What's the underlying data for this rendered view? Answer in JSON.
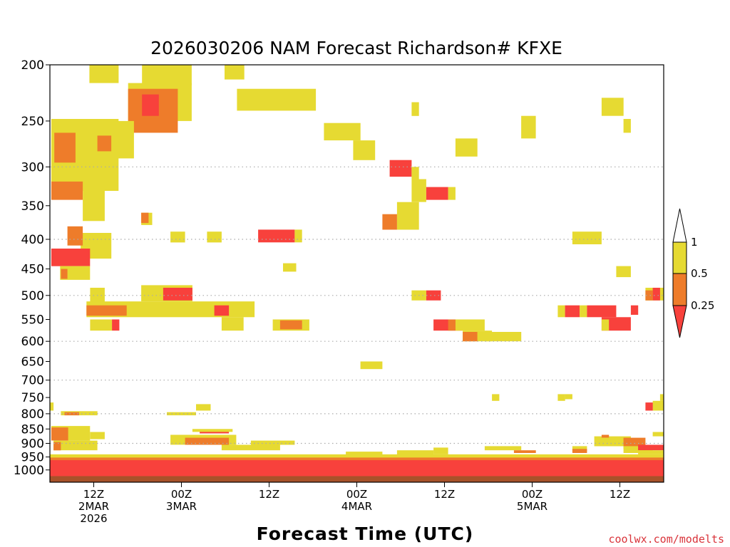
{
  "colors": {
    "ri_lt_025": "#f8413c",
    "ri_025_05": "#ee7c2a",
    "ri_05_1": "#e6da32",
    "surface": "#a8522a",
    "credit": "#d9333a",
    "grid": "#aaaaaa"
  },
  "chart_data": {
    "type": "heatmap",
    "title": "2026030206 NAM Forecast Richardson# KFXE",
    "xlabel": "Forecast Time (UTC)",
    "credit": "coolwx.com/modelts",
    "xlim_hours": [
      0,
      84
    ],
    "ylim_hpa": [
      200,
      1050
    ],
    "y_scale": "log-pressure",
    "yticks": [
      200,
      250,
      300,
      350,
      400,
      450,
      500,
      550,
      600,
      650,
      700,
      750,
      800,
      850,
      900,
      950,
      1000
    ],
    "y_gridlines": [
      300,
      400,
      500,
      600,
      700,
      800,
      900
    ],
    "xticks": [
      {
        "hour": 6,
        "lines": [
          "12Z",
          "2MAR",
          "2026"
        ]
      },
      {
        "hour": 18,
        "lines": [
          "00Z",
          "3MAR"
        ]
      },
      {
        "hour": 30,
        "lines": [
          "12Z"
        ]
      },
      {
        "hour": 42,
        "lines": [
          "00Z",
          "4MAR"
        ]
      },
      {
        "hour": 54,
        "lines": [
          "12Z"
        ]
      },
      {
        "hour": 66,
        "lines": [
          "00Z",
          "5MAR"
        ]
      },
      {
        "hour": 78,
        "lines": [
          "12Z"
        ]
      }
    ],
    "colorbar": {
      "ticks": [
        "1",
        "0.5",
        "0.25"
      ],
      "bins": [
        {
          "range": "> 1",
          "color": "none"
        },
        {
          "range": "0.5 - 1",
          "color": "ri_05_1"
        },
        {
          "range": "0.25 - 0.5",
          "color": "ri_025_05"
        },
        {
          "range": "< 0.25",
          "color": "ri_lt_025"
        }
      ]
    },
    "surface_layer_hpa": 1025,
    "regions": [
      {
        "c": "ri_05_1",
        "h0": 5.4,
        "h1": 9.4,
        "p0": 200,
        "p1": 215
      },
      {
        "c": "ri_05_1",
        "h0": 12.6,
        "h1": 19.4,
        "p0": 200,
        "p1": 217
      },
      {
        "c": "ri_05_1",
        "h0": 23.9,
        "h1": 26.6,
        "p0": 200,
        "p1": 212
      },
      {
        "c": "ri_05_1",
        "h0": 25.6,
        "h1": 36.4,
        "p0": 220,
        "p1": 240
      },
      {
        "c": "ri_05_1",
        "h0": 10.7,
        "h1": 19.4,
        "p0": 215,
        "p1": 250
      },
      {
        "c": "ri_025_05",
        "h0": 10.7,
        "h1": 17.5,
        "p0": 220,
        "p1": 262
      },
      {
        "c": "ri_lt_025",
        "h0": 12.6,
        "h1": 14.9,
        "p0": 225,
        "p1": 245
      },
      {
        "c": "ri_05_1",
        "h0": 7.5,
        "h1": 11.5,
        "p0": 250,
        "p1": 290
      },
      {
        "c": "ri_05_1",
        "h0": 0.2,
        "h1": 9.4,
        "p0": 248,
        "p1": 330
      },
      {
        "c": "ri_025_05",
        "h0": 0.6,
        "h1": 3.5,
        "p0": 262,
        "p1": 295
      },
      {
        "c": "ri_025_05",
        "h0": 6.5,
        "h1": 8.4,
        "p0": 265,
        "p1": 282
      },
      {
        "c": "ri_025_05",
        "h0": 0.2,
        "h1": 4.5,
        "p0": 318,
        "p1": 342
      },
      {
        "c": "ri_05_1",
        "h0": 4.5,
        "h1": 7.5,
        "p0": 330,
        "p1": 372
      },
      {
        "c": "ri_05_1",
        "h0": 4.2,
        "h1": 8.4,
        "p0": 390,
        "p1": 432
      },
      {
        "c": "ri_025_05",
        "h0": 2.4,
        "h1": 4.5,
        "p0": 380,
        "p1": 410
      },
      {
        "c": "ri_lt_025",
        "h0": 0.2,
        "h1": 5.5,
        "p0": 415,
        "p1": 445
      },
      {
        "c": "ri_05_1",
        "h0": 1.4,
        "h1": 5.5,
        "p0": 445,
        "p1": 470
      },
      {
        "c": "ri_025_05",
        "h0": 1.5,
        "h1": 2.4,
        "p0": 450,
        "p1": 468
      },
      {
        "c": "ri_05_1",
        "h0": 12.5,
        "h1": 14.0,
        "p0": 360,
        "p1": 378
      },
      {
        "c": "ri_025_05",
        "h0": 12.5,
        "h1": 13.5,
        "p0": 360,
        "p1": 375
      },
      {
        "c": "ri_05_1",
        "h0": 16.5,
        "h1": 18.5,
        "p0": 388,
        "p1": 405
      },
      {
        "c": "ri_05_1",
        "h0": 21.5,
        "h1": 23.5,
        "p0": 388,
        "p1": 405
      },
      {
        "c": "ri_lt_025",
        "h0": 28.5,
        "h1": 33.5,
        "p0": 385,
        "p1": 405
      },
      {
        "c": "ri_05_1",
        "h0": 33.5,
        "h1": 34.5,
        "p0": 385,
        "p1": 405
      },
      {
        "c": "ri_05_1",
        "h0": 31.9,
        "h1": 33.7,
        "p0": 440,
        "p1": 455
      },
      {
        "c": "ri_05_1",
        "h0": 37.5,
        "h1": 42.5,
        "p0": 252,
        "p1": 270
      },
      {
        "c": "ri_05_1",
        "h0": 41.5,
        "h1": 44.5,
        "p0": 270,
        "p1": 292
      },
      {
        "c": "ri_lt_025",
        "h0": 46.5,
        "h1": 49.5,
        "p0": 292,
        "p1": 312
      },
      {
        "c": "ri_05_1",
        "h0": 49.5,
        "h1": 50.5,
        "p0": 300,
        "p1": 315
      },
      {
        "c": "ri_05_1",
        "h0": 49.5,
        "h1": 51.5,
        "p0": 315,
        "p1": 345
      },
      {
        "c": "ri_lt_025",
        "h0": 51.5,
        "h1": 54.5,
        "p0": 325,
        "p1": 342
      },
      {
        "c": "ri_05_1",
        "h0": 54.5,
        "h1": 55.5,
        "p0": 325,
        "p1": 342
      },
      {
        "c": "ri_05_1",
        "h0": 47.5,
        "h1": 50.5,
        "p0": 345,
        "p1": 385
      },
      {
        "c": "ri_025_05",
        "h0": 45.5,
        "h1": 47.5,
        "p0": 362,
        "p1": 385
      },
      {
        "c": "ri_05_1",
        "h0": 49.5,
        "h1": 50.5,
        "p0": 232,
        "p1": 245
      },
      {
        "c": "ri_05_1",
        "h0": 55.5,
        "h1": 58.5,
        "p0": 268,
        "p1": 288
      },
      {
        "c": "ri_05_1",
        "h0": 64.5,
        "h1": 66.5,
        "p0": 245,
        "p1": 268
      },
      {
        "c": "ri_05_1",
        "h0": 75.5,
        "h1": 78.5,
        "p0": 228,
        "p1": 245
      },
      {
        "c": "ri_05_1",
        "h0": 78.5,
        "h1": 79.5,
        "p0": 248,
        "p1": 262
      },
      {
        "c": "ri_05_1",
        "h0": 71.5,
        "h1": 75.5,
        "p0": 388,
        "p1": 408
      },
      {
        "c": "ri_05_1",
        "h0": 77.5,
        "h1": 79.5,
        "p0": 445,
        "p1": 465
      },
      {
        "c": "ri_05_1",
        "h0": 5.5,
        "h1": 7.5,
        "p0": 485,
        "p1": 515
      },
      {
        "c": "ri_05_1",
        "h0": 12.5,
        "h1": 19.5,
        "p0": 480,
        "p1": 512
      },
      {
        "c": "ri_lt_025",
        "h0": 15.5,
        "h1": 19.5,
        "p0": 485,
        "p1": 510
      },
      {
        "c": "ri_05_1",
        "h0": 5.0,
        "h1": 28.0,
        "p0": 512,
        "p1": 545
      },
      {
        "c": "ri_025_05",
        "h0": 5.0,
        "h1": 10.5,
        "p0": 520,
        "p1": 542
      },
      {
        "c": "ri_lt_025",
        "h0": 22.5,
        "h1": 24.5,
        "p0": 520,
        "p1": 542
      },
      {
        "c": "ri_05_1",
        "h0": 5.5,
        "h1": 8.5,
        "p0": 550,
        "p1": 575
      },
      {
        "c": "ri_lt_025",
        "h0": 8.5,
        "h1": 9.5,
        "p0": 550,
        "p1": 575
      },
      {
        "c": "ri_05_1",
        "h0": 23.5,
        "h1": 26.5,
        "p0": 545,
        "p1": 575
      },
      {
        "c": "ri_05_1",
        "h0": 30.5,
        "h1": 35.5,
        "p0": 550,
        "p1": 575
      },
      {
        "c": "ri_025_05",
        "h0": 31.5,
        "h1": 34.5,
        "p0": 552,
        "p1": 572
      },
      {
        "c": "ri_05_1",
        "h0": 49.5,
        "h1": 51.5,
        "p0": 490,
        "p1": 510
      },
      {
        "c": "ri_lt_025",
        "h0": 51.5,
        "h1": 53.5,
        "p0": 490,
        "p1": 510
      },
      {
        "c": "ri_lt_025",
        "h0": 52.5,
        "h1": 56.5,
        "p0": 550,
        "p1": 575
      },
      {
        "c": "ri_025_05",
        "h0": 54.5,
        "h1": 55.5,
        "p0": 550,
        "p1": 575
      },
      {
        "c": "ri_05_1",
        "h0": 55.5,
        "h1": 59.5,
        "p0": 550,
        "p1": 575
      },
      {
        "c": "ri_05_1",
        "h0": 56.5,
        "h1": 60.5,
        "p0": 575,
        "p1": 600
      },
      {
        "c": "ri_025_05",
        "h0": 56.5,
        "h1": 58.5,
        "p0": 578,
        "p1": 600
      },
      {
        "c": "ri_05_1",
        "h0": 59.5,
        "h1": 64.5,
        "p0": 578,
        "p1": 600
      },
      {
        "c": "ri_05_1",
        "h0": 42.5,
        "h1": 45.5,
        "p0": 650,
        "p1": 670
      },
      {
        "c": "ri_05_1",
        "h0": 69.5,
        "h1": 70.5,
        "p0": 520,
        "p1": 545
      },
      {
        "c": "ri_lt_025",
        "h0": 70.5,
        "h1": 72.5,
        "p0": 520,
        "p1": 545
      },
      {
        "c": "ri_05_1",
        "h0": 72.5,
        "h1": 73.5,
        "p0": 520,
        "p1": 545
      },
      {
        "c": "ri_lt_025",
        "h0": 73.5,
        "h1": 77.5,
        "p0": 520,
        "p1": 545
      },
      {
        "c": "ri_lt_025",
        "h0": 75.5,
        "h1": 79.5,
        "p0": 545,
        "p1": 575
      },
      {
        "c": "ri_05_1",
        "h0": 75.5,
        "h1": 76.5,
        "p0": 550,
        "p1": 575
      },
      {
        "c": "ri_lt_025",
        "h0": 79.5,
        "h1": 80.5,
        "p0": 520,
        "p1": 540
      },
      {
        "c": "ri_05_1",
        "h0": 81.5,
        "h1": 84.0,
        "p0": 485,
        "p1": 510
      },
      {
        "c": "ri_lt_025",
        "h0": 82.5,
        "h1": 83.5,
        "p0": 485,
        "p1": 510
      },
      {
        "c": "ri_025_05",
        "h0": 81.5,
        "h1": 82.5,
        "p0": 490,
        "p1": 510
      },
      {
        "c": "ri_05_1",
        "h0": 0.0,
        "h1": 0.5,
        "p0": 765,
        "p1": 790
      },
      {
        "c": "ri_05_1",
        "h0": 60.5,
        "h1": 61.5,
        "p0": 740,
        "p1": 760
      },
      {
        "c": "ri_05_1",
        "h0": 69.5,
        "h1": 70.5,
        "p0": 740,
        "p1": 760
      },
      {
        "c": "ri_05_1",
        "h0": 70.5,
        "h1": 71.5,
        "p0": 740,
        "p1": 755
      },
      {
        "c": "ri_05_1",
        "h0": 82.5,
        "h1": 84.0,
        "p0": 760,
        "p1": 790
      },
      {
        "c": "ri_lt_025",
        "h0": 81.5,
        "h1": 82.5,
        "p0": 765,
        "p1": 790
      },
      {
        "c": "ri_05_1",
        "h0": 83.5,
        "h1": 84.0,
        "p0": 740,
        "p1": 760
      },
      {
        "c": "ri_05_1",
        "h0": 20.0,
        "h1": 22.0,
        "p0": 770,
        "p1": 790
      },
      {
        "c": "ri_05_1",
        "h0": 1.5,
        "h1": 6.5,
        "p0": 792,
        "p1": 805
      },
      {
        "c": "ri_025_05",
        "h0": 2.0,
        "h1": 4.0,
        "p0": 795,
        "p1": 805
      },
      {
        "c": "ri_05_1",
        "h0": 16.0,
        "h1": 20.0,
        "p0": 795,
        "p1": 805
      },
      {
        "c": "ri_05_1",
        "h0": 0.2,
        "h1": 5.5,
        "p0": 840,
        "p1": 890
      },
      {
        "c": "ri_025_05",
        "h0": 0.2,
        "h1": 2.5,
        "p0": 845,
        "p1": 890
      },
      {
        "c": "ri_05_1",
        "h0": 5.5,
        "h1": 7.5,
        "p0": 860,
        "p1": 885
      },
      {
        "c": "ri_05_1",
        "h0": 0.5,
        "h1": 6.5,
        "p0": 890,
        "p1": 925
      },
      {
        "c": "ri_025_05",
        "h0": 0.5,
        "h1": 1.5,
        "p0": 895,
        "p1": 925
      },
      {
        "c": "ri_05_1",
        "h0": 16.5,
        "h1": 25.5,
        "p0": 870,
        "p1": 905
      },
      {
        "c": "ri_025_05",
        "h0": 18.5,
        "h1": 24.5,
        "p0": 880,
        "p1": 905
      },
      {
        "c": "ri_lt_025",
        "h0": 20.5,
        "h1": 24.5,
        "p0": 855,
        "p1": 865
      },
      {
        "c": "ri_05_1",
        "h0": 19.5,
        "h1": 25.0,
        "p0": 850,
        "p1": 860
      },
      {
        "c": "ri_05_1",
        "h0": 23.5,
        "h1": 31.5,
        "p0": 905,
        "p1": 925
      },
      {
        "c": "ri_05_1",
        "h0": 27.5,
        "h1": 33.5,
        "p0": 890,
        "p1": 905
      },
      {
        "c": "ri_05_1",
        "h0": 40.5,
        "h1": 45.5,
        "p0": 930,
        "p1": 950
      },
      {
        "c": "ri_05_1",
        "h0": 47.5,
        "h1": 52.5,
        "p0": 925,
        "p1": 945
      },
      {
        "c": "ri_05_1",
        "h0": 52.5,
        "h1": 54.5,
        "p0": 915,
        "p1": 940
      },
      {
        "c": "ri_05_1",
        "h0": 59.5,
        "h1": 64.5,
        "p0": 910,
        "p1": 925
      },
      {
        "c": "ri_025_05",
        "h0": 63.5,
        "h1": 66.5,
        "p0": 925,
        "p1": 935
      },
      {
        "c": "ri_05_1",
        "h0": 71.5,
        "h1": 73.5,
        "p0": 910,
        "p1": 930
      },
      {
        "c": "ri_025_05",
        "h0": 71.5,
        "h1": 73.5,
        "p0": 920,
        "p1": 935
      },
      {
        "c": "ri_05_1",
        "h0": 74.5,
        "h1": 79.5,
        "p0": 875,
        "p1": 910
      },
      {
        "c": "ri_025_05",
        "h0": 75.5,
        "h1": 76.5,
        "p0": 870,
        "p1": 880
      },
      {
        "c": "ri_025_05",
        "h0": 78.5,
        "h1": 81.5,
        "p0": 880,
        "p1": 920
      },
      {
        "c": "ri_05_1",
        "h0": 78.5,
        "h1": 82.5,
        "p0": 910,
        "p1": 935
      },
      {
        "c": "ri_lt_025",
        "h0": 80.5,
        "h1": 84.0,
        "p0": 905,
        "p1": 925
      },
      {
        "c": "ri_05_1",
        "h0": 80.5,
        "h1": 84.0,
        "p0": 925,
        "p1": 940
      },
      {
        "c": "ri_05_1",
        "h0": 82.5,
        "h1": 84.0,
        "p0": 860,
        "p1": 875
      },
      {
        "c": "ri_05_1",
        "h0": 0.0,
        "h1": 84.0,
        "p0": 940,
        "p1": 975
      },
      {
        "c": "ri_025_05",
        "h0": 0.0,
        "h1": 84.0,
        "p0": 952,
        "p1": 975
      },
      {
        "c": "ri_lt_025",
        "h0": 0.0,
        "h1": 84.0,
        "p0": 962,
        "p1": 1012
      },
      {
        "c": "ri_lt_025",
        "h0": 0.0,
        "h1": 84.0,
        "p0": 1012,
        "p1": 1025
      }
    ]
  }
}
